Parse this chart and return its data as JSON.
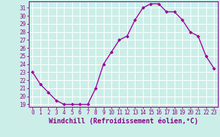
{
  "x": [
    0,
    1,
    2,
    3,
    4,
    5,
    6,
    7,
    8,
    9,
    10,
    11,
    12,
    13,
    14,
    15,
    16,
    17,
    18,
    19,
    20,
    21,
    22,
    23
  ],
  "y": [
    23,
    21.5,
    20.5,
    19.5,
    19.0,
    19.0,
    19.0,
    19.0,
    21.0,
    24.0,
    25.5,
    27.0,
    27.5,
    29.5,
    31.0,
    31.5,
    31.5,
    30.5,
    30.5,
    29.5,
    28.0,
    27.5,
    25.0,
    23.5
  ],
  "line_color": "#990099",
  "marker": "D",
  "marker_size": 2.2,
  "linewidth": 1.0,
  "xlabel": "Windchill (Refroidissement éolien,°C)",
  "xlim": [
    -0.5,
    23.5
  ],
  "ylim": [
    18.7,
    31.8
  ],
  "yticks": [
    19,
    20,
    21,
    22,
    23,
    24,
    25,
    26,
    27,
    28,
    29,
    30,
    31
  ],
  "xtick_labels": [
    "0",
    "1",
    "2",
    "3",
    "4",
    "5",
    "6",
    "7",
    "8",
    "9",
    "10",
    "11",
    "12",
    "13",
    "14",
    "15",
    "16",
    "17",
    "18",
    "19",
    "20",
    "21",
    "22",
    "23"
  ],
  "bg_color": "#cceee8",
  "grid_color": "#ffffff",
  "font_color": "#880088",
  "tick_label_fontsize": 5.5,
  "xlabel_fontsize": 7.0
}
